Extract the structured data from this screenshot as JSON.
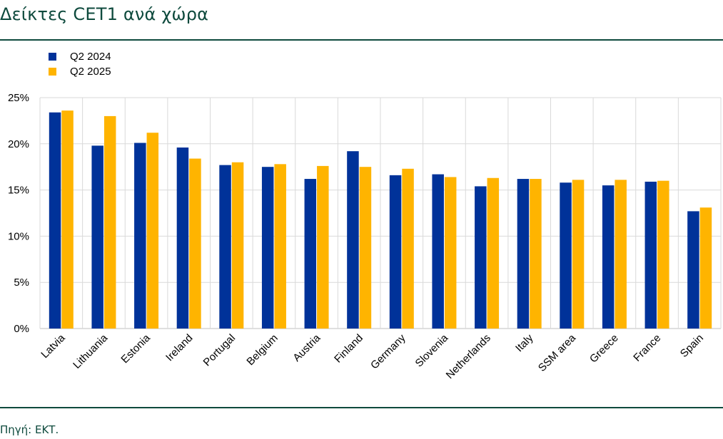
{
  "page": {
    "title": "Δείκτες CET1 ανά χώρα",
    "source": "Πηγή: ΕΚΤ."
  },
  "chart_data": {
    "type": "bar",
    "title": "",
    "xlabel": "",
    "ylabel": "",
    "categories": [
      "Latvia",
      "Lithuania",
      "Estonia",
      "Ireland",
      "Portugal",
      "Belgium",
      "Austria",
      "Finland",
      "Germany",
      "Slovenia",
      "Netherlands",
      "Italy",
      "SSM area",
      "Greece",
      "France",
      "Spain"
    ],
    "series": [
      {
        "name": "Q2 2024",
        "color": "#003299",
        "values": [
          23.4,
          19.8,
          20.1,
          19.6,
          17.7,
          17.5,
          16.2,
          19.2,
          16.6,
          16.7,
          15.4,
          16.2,
          15.8,
          15.5,
          15.9,
          12.7
        ]
      },
      {
        "name": "Q2 2025",
        "color": "#ffb400",
        "values": [
          23.6,
          23.0,
          21.2,
          18.4,
          18.0,
          17.8,
          17.6,
          17.5,
          17.3,
          16.4,
          16.3,
          16.2,
          16.1,
          16.1,
          16.0,
          13.1
        ]
      }
    ],
    "ylim": [
      0,
      25
    ],
    "yticks": [
      "0%",
      "5%",
      "10%",
      "15%",
      "20%",
      "25%"
    ],
    "grid": true,
    "legend_position": "top-left",
    "colors": {
      "grid": "#d9d9d9",
      "axis": "#bfbfbf"
    }
  }
}
